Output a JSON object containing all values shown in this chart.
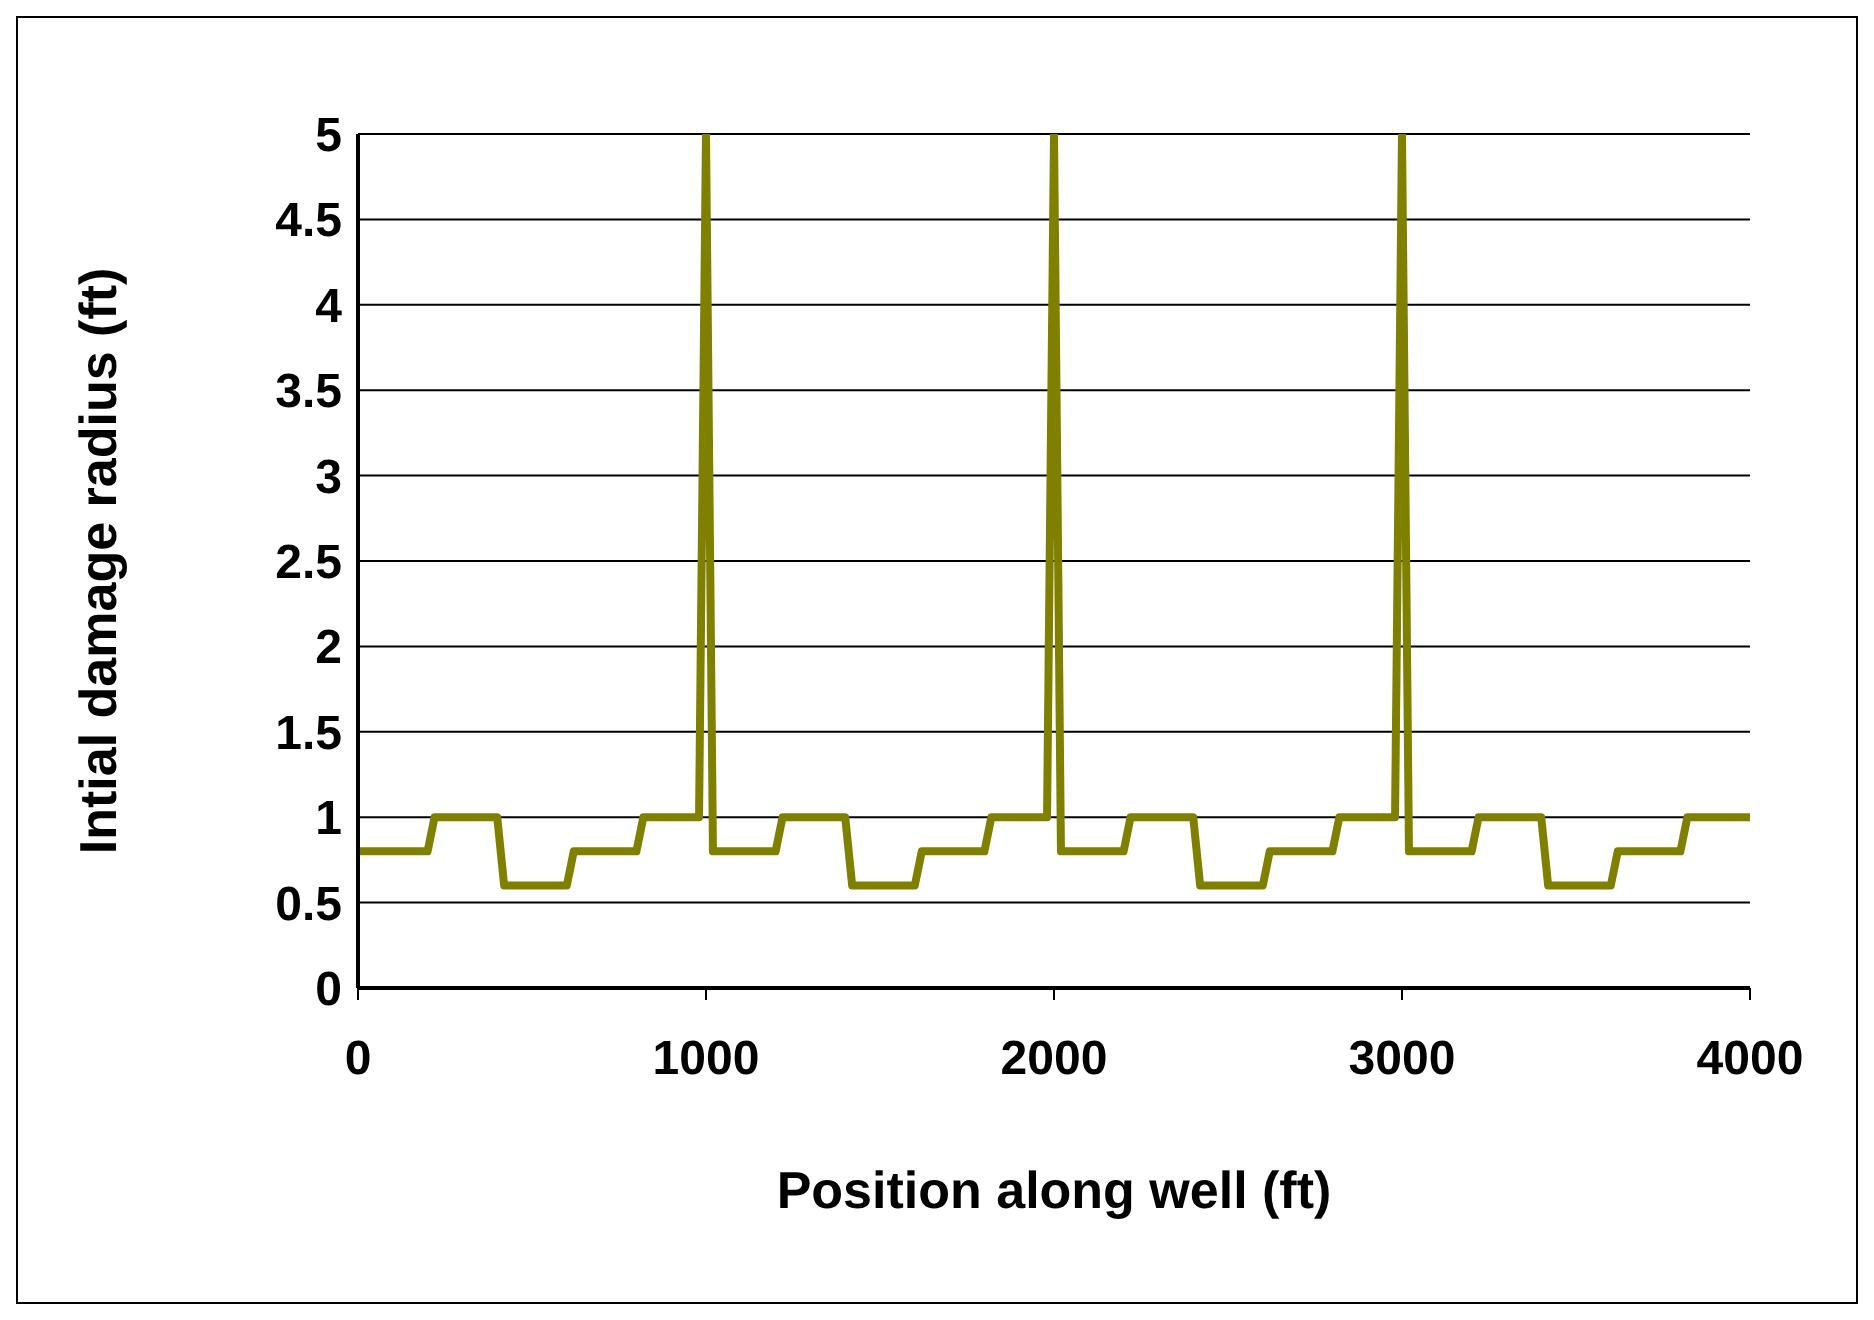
{
  "chart_data": {
    "type": "line",
    "xlabel": "Position along well (ft)",
    "ylabel": "Intial damage radius (ft)",
    "x": [
      0,
      200,
      220,
      400,
      420,
      600,
      620,
      800,
      820,
      980,
      1000,
      1020,
      1200,
      1220,
      1400,
      1420,
      1600,
      1620,
      1800,
      1820,
      1980,
      2000,
      2020,
      2200,
      2220,
      2400,
      2420,
      2600,
      2620,
      2800,
      2820,
      2980,
      3000,
      3020,
      3200,
      3220,
      3400,
      3420,
      3600,
      3620,
      3800,
      3820,
      4000
    ],
    "series": [
      {
        "color": "#808000",
        "values": [
          0.8,
          0.8,
          1,
          1,
          0.6,
          0.6,
          0.8,
          0.8,
          1,
          1,
          5,
          0.8,
          0.8,
          1,
          1,
          0.6,
          0.6,
          0.8,
          0.8,
          1,
          1,
          5,
          0.8,
          0.8,
          1,
          1,
          0.6,
          0.6,
          0.8,
          0.8,
          1,
          1,
          5,
          0.8,
          0.8,
          1,
          1,
          0.6,
          0.6,
          0.8,
          0.8,
          1,
          1
        ]
      }
    ],
    "xlim": [
      0,
      4000
    ],
    "xticks": [
      0,
      1000,
      2000,
      3000,
      4000
    ],
    "ylim": [
      0,
      5
    ],
    "yticks": [
      0,
      0.5,
      1,
      1.5,
      2,
      2.5,
      3,
      3.5,
      4,
      4.5,
      5
    ],
    "grid": "y",
    "marker": "none",
    "line_style": "solid",
    "legend": false
  }
}
